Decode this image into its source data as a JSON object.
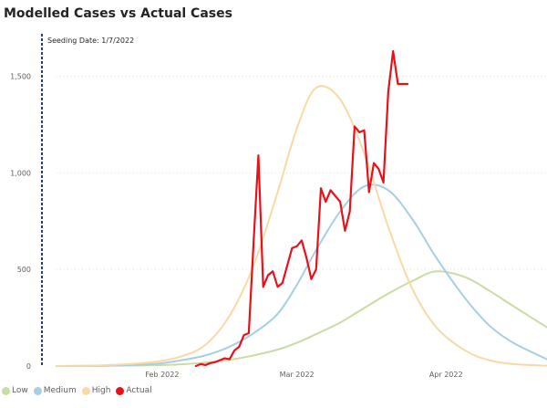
{
  "chart_data": {
    "type": "line",
    "title": "Modelled Cases vs Actual Cases",
    "xlabel": "",
    "ylabel": "",
    "xlim": [
      "2022-01-07",
      "2022-04-22"
    ],
    "ylim": [
      0,
      1800
    ],
    "y_ticks": [
      0,
      500,
      1000,
      1500
    ],
    "y_tick_labels": [
      "0",
      "500",
      "1,000",
      "1,500"
    ],
    "x_ticks": [
      "2022-02-01",
      "2022-03-01",
      "2022-04-01"
    ],
    "x_tick_labels": [
      "Feb 2022",
      "Mar 2022",
      "Apr 2022"
    ],
    "grid": "horizontal dotted",
    "legend_position": "bottom-left",
    "annotations": [
      {
        "type": "vertical-dashed-line",
        "x": "2022-01-07",
        "text": "Seeding Date: 1/7/2022",
        "color": "#1f3a93"
      }
    ],
    "series": [
      {
        "name": "Low",
        "color": "#c9dca4",
        "x": [
          "2022-01-10",
          "2022-01-20",
          "2022-01-30",
          "2022-02-05",
          "2022-02-10",
          "2022-02-15",
          "2022-02-20",
          "2022-02-25",
          "2022-03-01",
          "2022-03-05",
          "2022-03-10",
          "2022-03-15",
          "2022-03-20",
          "2022-03-25",
          "2022-03-30",
          "2022-04-05",
          "2022-04-10",
          "2022-04-15",
          "2022-04-22"
        ],
        "values": [
          0,
          1,
          4,
          9,
          18,
          32,
          55,
          85,
          120,
          165,
          225,
          300,
          375,
          440,
          490,
          460,
          390,
          310,
          200
        ]
      },
      {
        "name": "Medium",
        "color": "#a6cfe3",
        "x": [
          "2022-01-10",
          "2022-01-20",
          "2022-01-30",
          "2022-02-05",
          "2022-02-10",
          "2022-02-15",
          "2022-02-20",
          "2022-02-25",
          "2022-03-01",
          "2022-03-05",
          "2022-03-10",
          "2022-03-15",
          "2022-03-20",
          "2022-03-25",
          "2022-03-30",
          "2022-04-05",
          "2022-04-10",
          "2022-04-15",
          "2022-04-22"
        ],
        "values": [
          0,
          2,
          10,
          30,
          55,
          100,
          170,
          270,
          420,
          600,
          800,
          930,
          910,
          760,
          560,
          350,
          210,
          120,
          35
        ]
      },
      {
        "name": "High",
        "color": "#f8d9a6",
        "x": [
          "2022-01-10",
          "2022-01-20",
          "2022-01-30",
          "2022-02-05",
          "2022-02-10",
          "2022-02-15",
          "2022-02-20",
          "2022-02-25",
          "2022-03-01",
          "2022-03-05",
          "2022-03-10",
          "2022-03-15",
          "2022-03-20",
          "2022-03-25",
          "2022-03-30",
          "2022-04-05",
          "2022-04-10",
          "2022-04-15",
          "2022-04-22"
        ],
        "values": [
          0,
          4,
          20,
          50,
          110,
          260,
          520,
          900,
          1230,
          1440,
          1380,
          1100,
          720,
          400,
          200,
          80,
          30,
          10,
          2
        ]
      },
      {
        "name": "Actual",
        "color": "#e8111a",
        "x": [
          "2022-02-08",
          "2022-02-09",
          "2022-02-10",
          "2022-02-11",
          "2022-02-12",
          "2022-02-13",
          "2022-02-14",
          "2022-02-15",
          "2022-02-16",
          "2022-02-17",
          "2022-02-18",
          "2022-02-19",
          "2022-02-20",
          "2022-02-21",
          "2022-02-22",
          "2022-02-23",
          "2022-02-24",
          "2022-02-25",
          "2022-02-26",
          "2022-02-27",
          "2022-02-28",
          "2022-03-01",
          "2022-03-02",
          "2022-03-03",
          "2022-03-04",
          "2022-03-05",
          "2022-03-06",
          "2022-03-07",
          "2022-03-08",
          "2022-03-09",
          "2022-03-10",
          "2022-03-11",
          "2022-03-12",
          "2022-03-13",
          "2022-03-14",
          "2022-03-15",
          "2022-03-16",
          "2022-03-17",
          "2022-03-18",
          "2022-03-19",
          "2022-03-20",
          "2022-03-21",
          "2022-03-22",
          "2022-03-23",
          "2022-03-24"
        ],
        "values": [
          0,
          10,
          5,
          15,
          20,
          30,
          40,
          35,
          80,
          100,
          160,
          170,
          640,
          1090,
          410,
          470,
          490,
          410,
          430,
          520,
          610,
          620,
          650,
          560,
          450,
          500,
          920,
          850,
          910,
          880,
          850,
          700,
          800,
          1240,
          1210,
          1220,
          900,
          1050,
          1020,
          950,
          1420,
          1630,
          1460,
          1460,
          1460
        ]
      }
    ]
  },
  "legend": {
    "items": [
      {
        "label": "Low",
        "color": "#c9dca4"
      },
      {
        "label": "Medium",
        "color": "#a6cfe3"
      },
      {
        "label": "High",
        "color": "#f8d9a6"
      },
      {
        "label": "Actual",
        "color": "#e8111a"
      }
    ]
  }
}
